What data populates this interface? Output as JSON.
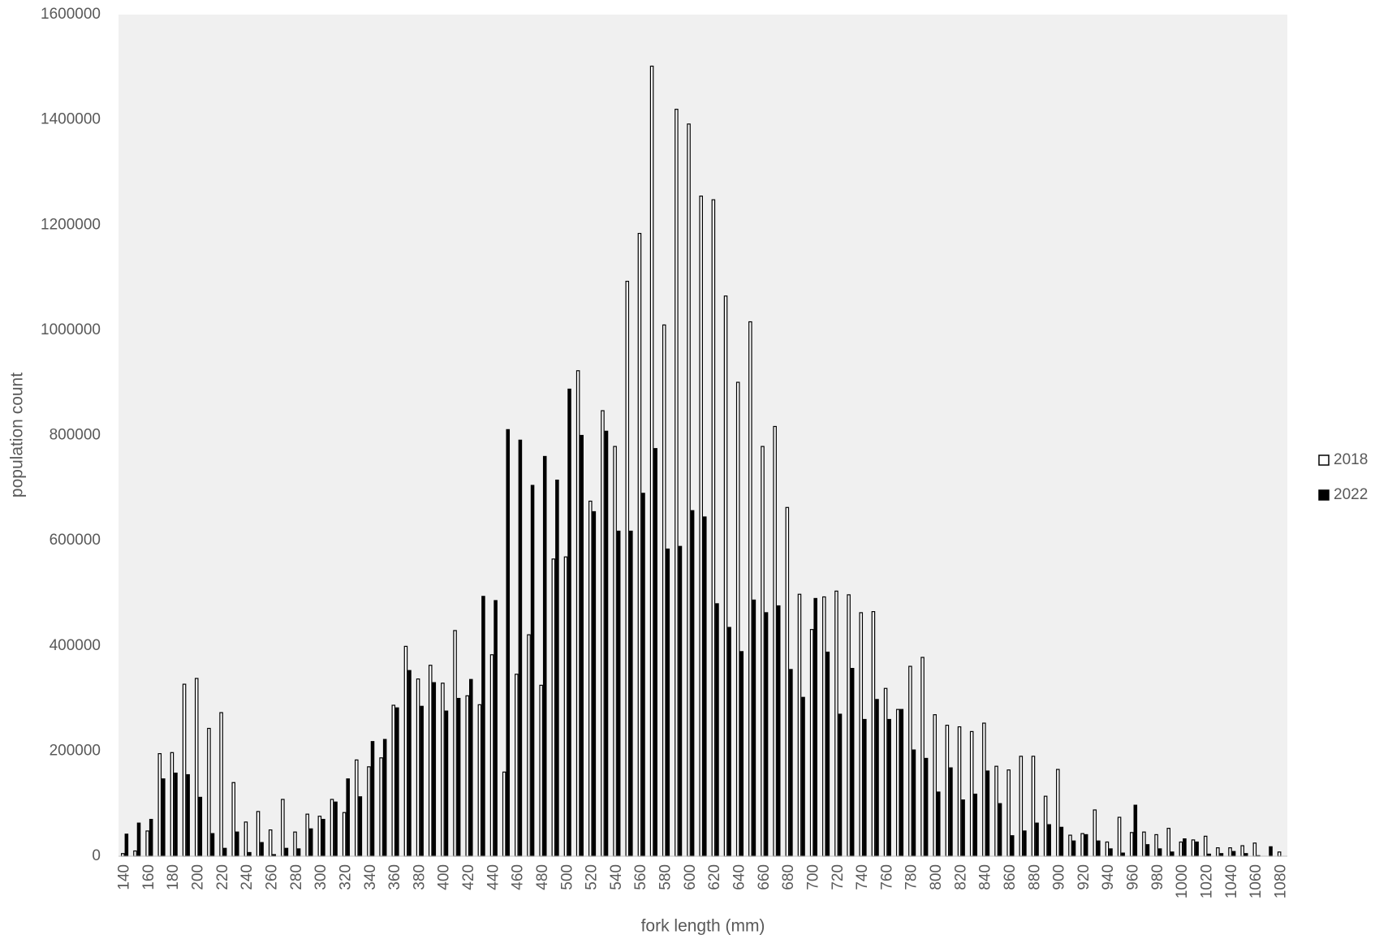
{
  "chart_data": {
    "type": "bar",
    "x_label": "fork length (mm)",
    "y_label": "population count",
    "categories": [
      "140",
      null,
      "160",
      null,
      "180",
      null,
      "200",
      null,
      "220",
      null,
      "240",
      null,
      "260",
      null,
      "280",
      null,
      "300",
      null,
      "320",
      null,
      "340",
      null,
      "360",
      null,
      "380",
      null,
      "400",
      null,
      "420",
      null,
      "440",
      null,
      "460",
      null,
      "480",
      null,
      "500",
      null,
      "520",
      null,
      "540",
      null,
      "560",
      null,
      "580",
      null,
      "600",
      null,
      "620",
      null,
      "640",
      null,
      "660",
      null,
      "680",
      null,
      "700",
      null,
      "720",
      null,
      "740",
      null,
      "760",
      null,
      "780",
      null,
      "800",
      null,
      "820",
      null,
      "840",
      null,
      "860",
      null,
      "880",
      null,
      "900",
      null,
      "920",
      null,
      "940",
      null,
      "960",
      null,
      "980",
      null,
      "1000",
      null,
      "1020",
      null,
      "1040",
      null,
      "1060",
      null,
      "1080"
    ],
    "series": [
      {
        "name": "2018",
        "color": "#ffffff",
        "values": [
          5000,
          10000,
          48000,
          195000,
          197000,
          327000,
          338000,
          243000,
          273000,
          140000,
          65000,
          85000,
          50000,
          108000,
          46000,
          80000,
          76000,
          108000,
          83000,
          183000,
          170000,
          187000,
          287000,
          399000,
          337000,
          363000,
          329000,
          429000,
          305000,
          288000,
          383000,
          160000,
          346000,
          421000,
          325000,
          565000,
          569000,
          923000,
          675000,
          847000,
          779000,
          1093000,
          1184000,
          1502000,
          1010000,
          1420000,
          1392000,
          1255000,
          1248000,
          1065000,
          901000,
          1016000,
          779000,
          817000,
          663000,
          498000,
          431000,
          493000,
          504000,
          497000,
          463000,
          465000,
          319000,
          279000,
          361000,
          378000,
          269000,
          249000,
          246000,
          237000,
          253000,
          171000,
          164000,
          190000,
          190000,
          114000,
          165000,
          40000,
          43000,
          88000,
          27000,
          74000,
          45000,
          46000,
          41000,
          53000,
          27000,
          31000,
          38000,
          16000,
          16000,
          20000,
          25000,
          0,
          8000
        ]
      },
      {
        "name": "2022",
        "color": "#000000",
        "values": [
          42000,
          63000,
          70000,
          147000,
          158000,
          155000,
          112000,
          43000,
          15000,
          46000,
          7000,
          26000,
          3000,
          15000,
          14000,
          52000,
          70000,
          103000,
          147000,
          113000,
          218000,
          222000,
          282000,
          353000,
          285000,
          330000,
          276000,
          300000,
          336000,
          494000,
          486000,
          811000,
          791000,
          705000,
          760000,
          715000,
          888000,
          800000,
          655000,
          808000,
          618000,
          618000,
          690000,
          775000,
          584000,
          589000,
          657000,
          645000,
          480000,
          435000,
          389000,
          487000,
          463000,
          476000,
          355000,
          302000,
          490000,
          388000,
          270000,
          357000,
          260000,
          298000,
          260000,
          279000,
          202000,
          186000,
          122000,
          168000,
          107000,
          118000,
          162000,
          100000,
          39000,
          48000,
          63000,
          60000,
          55000,
          29000,
          41000,
          29000,
          14000,
          6000,
          97000,
          22000,
          14000,
          8000,
          33000,
          27000,
          4000,
          5000,
          9000,
          5000,
          1000,
          18000,
          0
        ]
      }
    ],
    "ylim": [
      0,
      1600000
    ],
    "yticks": [
      0,
      200000,
      400000,
      600000,
      800000,
      1000000,
      1200000,
      1400000,
      1600000
    ],
    "grid": false,
    "legend": "right"
  }
}
